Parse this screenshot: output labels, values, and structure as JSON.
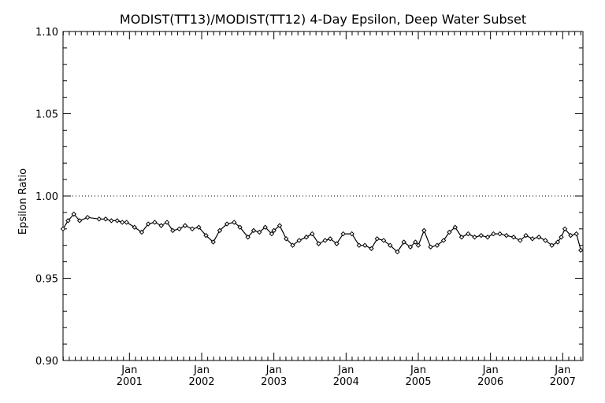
{
  "chart_data": {
    "type": "line",
    "title": "MODIST(TT13)/MODIST(TT12) 4-Day Epsilon, Deep Water Subset",
    "xlabel": "",
    "ylabel": "Epsilon Ratio",
    "ylim": [
      0.9,
      1.1
    ],
    "y_ticks": [
      "0.90",
      "0.95",
      "1.00",
      "1.05",
      "1.10"
    ],
    "x_ticks": [
      {
        "month": "Jan",
        "year": "2001",
        "x": 2001.0
      },
      {
        "month": "Jan",
        "year": "2002",
        "x": 2002.0
      },
      {
        "month": "Jan",
        "year": "2003",
        "x": 2003.0
      },
      {
        "month": "Jan",
        "year": "2004",
        "x": 2004.0
      },
      {
        "month": "Jan",
        "year": "2005",
        "x": 2005.0
      },
      {
        "month": "Jan",
        "year": "2006",
        "x": 2006.0
      },
      {
        "month": "Jan",
        "year": "2007",
        "x": 2007.0
      }
    ],
    "xlim": [
      2000.08,
      2007.28
    ],
    "reference_line": 1.0,
    "series": [
      {
        "x": [
          2000.08,
          2000.15,
          2000.23,
          2000.31,
          2000.42,
          2000.58,
          2000.67,
          2000.75,
          2000.83,
          2000.9,
          2000.96,
          2001.07,
          2001.17,
          2001.26,
          2001.35,
          2001.44,
          2001.52,
          2001.6,
          2001.69,
          2001.77,
          2001.87,
          2001.96,
          2002.06,
          2002.16,
          2002.25,
          2002.35,
          2002.45,
          2002.53,
          2002.64,
          2002.72,
          2002.8,
          2002.88,
          2002.97,
          2003.0,
          2003.08,
          2003.17,
          2003.26,
          2003.35,
          2003.45,
          2003.53,
          2003.62,
          2003.71,
          2003.78,
          2003.87,
          2003.96,
          2004.08,
          2004.18,
          2004.26,
          2004.35,
          2004.43,
          2004.52,
          2004.61,
          2004.71,
          2004.8,
          2004.89,
          2004.96,
          2005.0,
          2005.08,
          2005.17,
          2005.26,
          2005.35,
          2005.43,
          2005.51,
          2005.6,
          2005.69,
          2005.78,
          2005.87,
          2005.96,
          2006.04,
          2006.13,
          2006.22,
          2006.32,
          2006.41,
          2006.49,
          2006.58,
          2006.67,
          2006.76,
          2006.85,
          2006.93,
          2006.98,
          2007.03,
          2007.11,
          2007.19,
          2007.25
        ],
        "values": [
          0.98,
          0.985,
          0.989,
          0.985,
          0.987,
          0.986,
          0.986,
          0.985,
          0.985,
          0.984,
          0.984,
          0.981,
          0.978,
          0.983,
          0.984,
          0.982,
          0.984,
          0.979,
          0.98,
          0.982,
          0.98,
          0.981,
          0.976,
          0.972,
          0.979,
          0.983,
          0.984,
          0.981,
          0.975,
          0.979,
          0.978,
          0.981,
          0.977,
          0.979,
          0.982,
          0.974,
          0.97,
          0.973,
          0.975,
          0.977,
          0.971,
          0.973,
          0.974,
          0.971,
          0.977,
          0.977,
          0.97,
          0.97,
          0.968,
          0.974,
          0.973,
          0.97,
          0.966,
          0.972,
          0.969,
          0.972,
          0.97,
          0.979,
          0.969,
          0.97,
          0.973,
          0.978,
          0.981,
          0.975,
          0.977,
          0.975,
          0.976,
          0.975,
          0.977,
          0.977,
          0.976,
          0.975,
          0.973,
          0.976,
          0.974,
          0.975,
          0.973,
          0.97,
          0.972,
          0.975,
          0.98,
          0.976,
          0.977,
          0.967
        ]
      }
    ]
  }
}
